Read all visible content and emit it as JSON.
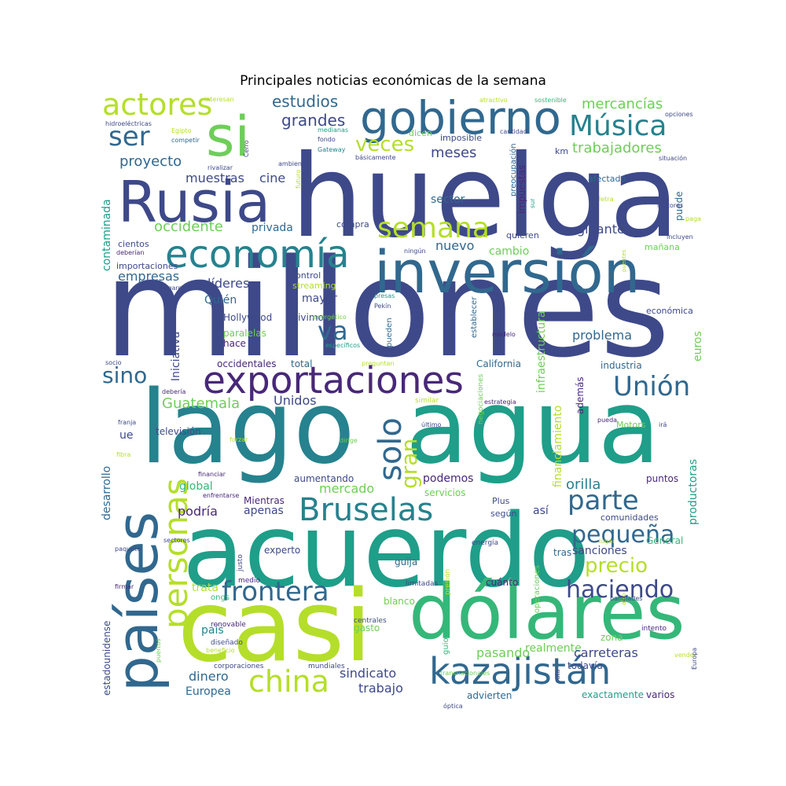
{
  "chart_data": {
    "type": "wordcloud",
    "title": "Principales noticias económicas de la semana",
    "palette": [
      "#440154",
      "#482878",
      "#3e4989",
      "#31688e",
      "#26828e",
      "#1f9e89",
      "#35b779",
      "#6ece58",
      "#b5de2b",
      "#fde725"
    ],
    "words": [
      {
        "text": "millones",
        "weight": 172,
        "color": "#3e4989"
      },
      {
        "text": "huelga",
        "weight": 145,
        "color": "#3e4989"
      },
      {
        "text": "agua",
        "weight": 130,
        "color": "#1f9e89"
      },
      {
        "text": "lago",
        "weight": 128,
        "color": "#26828e"
      },
      {
        "text": "acuerdo",
        "weight": 128,
        "color": "#1f9e89"
      },
      {
        "text": "casi",
        "weight": 126,
        "color": "#b5de2b"
      },
      {
        "text": "dólares",
        "weight": 96,
        "color": "#35b779"
      },
      {
        "text": "inversión",
        "weight": 74,
        "color": "#31688e"
      },
      {
        "text": "Rusia",
        "weight": 72,
        "color": "#3e4989"
      },
      {
        "text": "países",
        "weight": 72,
        "color": "#31688e"
      },
      {
        "text": "si",
        "weight": 70,
        "color": "#6ece58"
      },
      {
        "text": "gobierno",
        "weight": 58,
        "color": "#31688e"
      },
      {
        "text": "economía",
        "weight": 48,
        "color": "#26828e"
      },
      {
        "text": "exportaciones",
        "weight": 47,
        "color": "#482878"
      },
      {
        "text": "kazajistán",
        "weight": 46,
        "color": "#31688e"
      },
      {
        "text": "personas",
        "weight": 42,
        "color": "#b5de2b"
      },
      {
        "text": "Bruselas",
        "weight": 40,
        "color": "#26828e"
      },
      {
        "text": "solo",
        "weight": 40,
        "color": "#31688e"
      },
      {
        "text": "china",
        "weight": 38,
        "color": "#b5de2b"
      },
      {
        "text": "actores",
        "weight": 38,
        "color": "#b5de2b"
      },
      {
        "text": "semana",
        "weight": 36,
        "color": "#b5de2b"
      },
      {
        "text": "Música",
        "weight": 36,
        "color": "#26828e"
      },
      {
        "text": "frontera",
        "weight": 34,
        "color": "#31688e"
      },
      {
        "text": "parte",
        "weight": 34,
        "color": "#31688e"
      },
      {
        "text": "Unión",
        "weight": 34,
        "color": "#31688e"
      },
      {
        "text": "ser",
        "weight": 34,
        "color": "#31688e"
      },
      {
        "text": "va",
        "weight": 32,
        "color": "#31688e"
      },
      {
        "text": "haciendo",
        "weight": 30,
        "color": "#3e4989"
      },
      {
        "text": "pequeña",
        "weight": 30,
        "color": "#31688e"
      },
      {
        "text": "sino",
        "weight": 28,
        "color": "#31688e"
      },
      {
        "text": "gran",
        "weight": 28,
        "color": "#b5de2b"
      },
      {
        "text": "veces",
        "weight": 26,
        "color": "#b5de2b"
      },
      {
        "text": "precio",
        "weight": 26,
        "color": "#b5de2b"
      },
      {
        "text": "estudios",
        "weight": 20,
        "color": "#31688e"
      },
      {
        "text": "grandes",
        "weight": 20,
        "color": "#3e4989"
      },
      {
        "text": "mercancías",
        "weight": 18,
        "color": "#6ece58"
      },
      {
        "text": "trabajadores",
        "weight": 18,
        "color": "#6ece58"
      },
      {
        "text": "proyecto",
        "weight": 18,
        "color": "#31688e"
      },
      {
        "text": "meses",
        "weight": 18,
        "color": "#3e4989"
      },
      {
        "text": "muestras",
        "weight": 16,
        "color": "#3e4989"
      },
      {
        "text": "cine",
        "weight": 16,
        "color": "#3e4989"
      },
      {
        "text": "sector",
        "weight": 14,
        "color": "#31688e"
      },
      {
        "text": "occidente",
        "weight": 18,
        "color": "#6ece58"
      },
      {
        "text": "privada",
        "weight": 14,
        "color": "#31688e"
      },
      {
        "text": "gigante",
        "weight": 16,
        "color": "#3e4989"
      },
      {
        "text": "nuevo",
        "weight": 16,
        "color": "#31688e"
      },
      {
        "text": "cambio",
        "weight": 14,
        "color": "#6ece58"
      },
      {
        "text": "empresas",
        "weight": 16,
        "color": "#31688e"
      },
      {
        "text": "líderes",
        "weight": 16,
        "color": "#3e4989"
      },
      {
        "text": "mayor",
        "weight": 14,
        "color": "#3e4989"
      },
      {
        "text": "problema",
        "weight": 16,
        "color": "#31688e"
      },
      {
        "text": "Quién",
        "weight": 14,
        "color": "#31688e"
      },
      {
        "text": "Guatemala",
        "weight": 18,
        "color": "#6ece58"
      },
      {
        "text": "Unidos",
        "weight": 16,
        "color": "#3e4989"
      },
      {
        "text": "mercado",
        "weight": 16,
        "color": "#6ece58"
      },
      {
        "text": "podemos",
        "weight": 14,
        "color": "#482878"
      },
      {
        "text": "orilla",
        "weight": 18,
        "color": "#26828e"
      },
      {
        "text": "global",
        "weight": 14,
        "color": "#35b779"
      },
      {
        "text": "podría",
        "weight": 16,
        "color": "#482878"
      },
      {
        "text": "apenas",
        "weight": 14,
        "color": "#3e4989"
      },
      {
        "text": "así",
        "weight": 14,
        "color": "#3e4989"
      },
      {
        "text": "sanciones",
        "weight": 14,
        "color": "#3e4989"
      },
      {
        "text": "dinero",
        "weight": 16,
        "color": "#31688e"
      },
      {
        "text": "sindicato",
        "weight": 16,
        "color": "#3e4989"
      },
      {
        "text": "trabajo",
        "weight": 16,
        "color": "#3e4989"
      },
      {
        "text": "pasando",
        "weight": 16,
        "color": "#6ece58"
      },
      {
        "text": "realmente",
        "weight": 14,
        "color": "#6ece58"
      },
      {
        "text": "carreteras",
        "weight": 16,
        "color": "#3e4989"
      },
      {
        "text": "Europea",
        "weight": 14,
        "color": "#31688e"
      },
      {
        "text": "trata",
        "weight": 14,
        "color": "#b5de2b"
      },
      {
        "text": "país",
        "weight": 14,
        "color": "#26828e"
      },
      {
        "text": "todavía",
        "weight": 12,
        "color": "#3e4989"
      },
      {
        "text": "varios",
        "weight": 12,
        "color": "#482878"
      },
      {
        "text": "exactamente",
        "weight": 12,
        "color": "#1f9e89"
      },
      {
        "text": "advierten",
        "weight": 12,
        "color": "#31688e"
      },
      {
        "text": "industria",
        "weight": 12,
        "color": "#31688e"
      },
      {
        "text": "California",
        "weight": 12,
        "color": "#31688e"
      },
      {
        "text": "Hollywood",
        "weight": 12,
        "color": "#3e4989"
      },
      {
        "text": "vivimos",
        "weight": 12,
        "color": "#3e4989"
      },
      {
        "text": "total",
        "weight": 12,
        "color": "#31688e"
      },
      {
        "text": "occidentales",
        "weight": 12,
        "color": "#482878"
      },
      {
        "text": "hace",
        "weight": 12,
        "color": "#482878"
      },
      {
        "text": "paralelas",
        "weight": 12,
        "color": "#6ece58"
      },
      {
        "text": "aumentando",
        "weight": 12,
        "color": "#3e4989"
      },
      {
        "text": "servicios",
        "weight": 12,
        "color": "#6ece58"
      },
      {
        "text": "Mientras",
        "weight": 12,
        "color": "#482878"
      },
      {
        "text": "puntos",
        "weight": 12,
        "color": "#482878"
      },
      {
        "text": "comunidades",
        "weight": 11,
        "color": "#3e4989"
      },
      {
        "text": "General",
        "weight": 12,
        "color": "#35b779"
      },
      {
        "text": "experto",
        "weight": 12,
        "color": "#3e4989"
      },
      {
        "text": "guija",
        "weight": 12,
        "color": "#31688e"
      },
      {
        "text": "tras",
        "weight": 12,
        "color": "#31688e"
      },
      {
        "text": "blanco",
        "weight": 12,
        "color": "#6ece58"
      },
      {
        "text": "gasto",
        "weight": 12,
        "color": "#6ece58"
      },
      {
        "text": "cuánto",
        "weight": 12,
        "color": "#482878"
      },
      {
        "text": "zona",
        "weight": 12,
        "color": "#6ece58"
      },
      {
        "text": "televisión",
        "weight": 12,
        "color": "#3e4989"
      },
      {
        "text": "ue",
        "weight": 14,
        "color": "#3e4989"
      },
      {
        "text": "Motors",
        "weight": 11,
        "color": "#6ece58"
      },
      {
        "text": "según",
        "weight": 11,
        "color": "#3e4989"
      },
      {
        "text": "Plus",
        "weight": 11,
        "color": "#3e4989"
      },
      {
        "text": "control",
        "weight": 11,
        "color": "#3e4989"
      },
      {
        "text": "streaming",
        "weight": 11,
        "color": "#b5de2b"
      },
      {
        "text": "compra",
        "weight": 11,
        "color": "#3e4989"
      },
      {
        "text": "quieren",
        "weight": 11,
        "color": "#3e4989"
      },
      {
        "text": "afectado",
        "weight": 11,
        "color": "#31688e"
      },
      {
        "text": "imposible",
        "weight": 11,
        "color": "#3e4989"
      },
      {
        "text": "dicen",
        "weight": 11,
        "color": "#6ece58"
      },
      {
        "text": "económica",
        "weight": 11,
        "color": "#3e4989"
      },
      {
        "text": "mañana",
        "weight": 11,
        "color": "#6ece58"
      },
      {
        "text": "cientos",
        "weight": 11,
        "color": "#3e4989"
      },
      {
        "text": "importaciones",
        "weight": 11,
        "color": "#3e4989"
      },
      {
        "text": "contaminada",
        "weight": 14,
        "color": "#1f9e89"
      },
      {
        "text": "Iniciativa",
        "weight": 14,
        "color": "#3e4989"
      },
      {
        "text": "desarrollo",
        "weight": 14,
        "color": "#31688e"
      },
      {
        "text": "estadounidense",
        "weight": 12,
        "color": "#3e4989"
      },
      {
        "text": "productoras",
        "weight": 14,
        "color": "#1f9e89"
      },
      {
        "text": "euros",
        "weight": 14,
        "color": "#6ece58"
      },
      {
        "text": "infraestructura",
        "weight": 14,
        "color": "#6ece58"
      },
      {
        "text": "financiamiento",
        "weight": 14,
        "color": "#b5de2b"
      },
      {
        "text": "impuestas",
        "weight": 12,
        "color": "#482878"
      },
      {
        "text": "además",
        "weight": 12,
        "color": "#482878"
      },
      {
        "text": "puede",
        "weight": 12,
        "color": "#31688e"
      },
      {
        "text": "km",
        "weight": 11,
        "color": "#3e4989"
      },
      {
        "text": "preocupación",
        "weight": 10,
        "color": "#31688e"
      },
      {
        "text": "establecer",
        "weight": 10,
        "color": "#31688e"
      },
      {
        "text": "pueden",
        "weight": 10,
        "color": "#31688e"
      },
      {
        "text": "guionistas",
        "weight": 10,
        "color": "#35b779"
      },
      {
        "text": "operaciones",
        "weight": 10,
        "color": "#6ece58"
      },
      {
        "text": "negociaciones",
        "weight": 9,
        "color": "#6ece58"
      },
      {
        "text": "justo",
        "weight": 9,
        "color": "#3e4989"
      },
      {
        "text": "ongs",
        "weight": 10,
        "color": "#35b779"
      },
      {
        "text": "medio",
        "weight": 9,
        "color": "#482878"
      },
      {
        "text": "presión",
        "weight": 9,
        "color": "#b5de2b"
      },
      {
        "text": "limitadas",
        "weight": 9,
        "color": "#3e4989"
      },
      {
        "text": "energía",
        "weight": 9,
        "color": "#3e4989"
      },
      {
        "text": "renovable",
        "weight": 9,
        "color": "#482878"
      },
      {
        "text": "diseñado",
        "weight": 9,
        "color": "#3e4989"
      },
      {
        "text": "beneficio",
        "weight": 8,
        "color": "#b5de2b"
      },
      {
        "text": "centrales",
        "weight": 9,
        "color": "#3e4989"
      },
      {
        "text": "corporaciones",
        "weight": 9,
        "color": "#3e4989"
      },
      {
        "text": "mundiales",
        "weight": 9,
        "color": "#3e4989"
      },
      {
        "text": "transnacionales",
        "weight": 8,
        "color": "#6ece58"
      },
      {
        "text": "óptica",
        "weight": 8,
        "color": "#3e4989"
      },
      {
        "text": "ruta",
        "weight": 8,
        "color": "#3e4989"
      },
      {
        "text": "intento",
        "weight": 9,
        "color": "#482878"
      },
      {
        "text": "vender",
        "weight": 8,
        "color": "#b5de2b"
      },
      {
        "text": "Europa",
        "weight": 8,
        "color": "#3e4989"
      },
      {
        "text": "alto",
        "weight": 8,
        "color": "#b5de2b"
      },
      {
        "text": "banglades",
        "weight": 8,
        "color": "#3e4989"
      },
      {
        "text": "lugar",
        "weight": 8,
        "color": "#b5de2b"
      },
      {
        "text": "sectores",
        "weight": 8,
        "color": "#3e4989"
      },
      {
        "text": "paquete",
        "weight": 8,
        "color": "#3e4989"
      },
      {
        "text": "firmar",
        "weight": 8,
        "color": "#482878"
      },
      {
        "text": "puertos",
        "weight": 8,
        "color": "#6ece58"
      },
      {
        "text": "enfrentarse",
        "weight": 8,
        "color": "#482878"
      },
      {
        "text": "financiar",
        "weight": 8,
        "color": "#482878"
      },
      {
        "text": "fibra",
        "weight": 8,
        "color": "#b5de2b"
      },
      {
        "text": "franja",
        "weight": 8,
        "color": "#3e4989"
      },
      {
        "text": "forzar",
        "weight": 8,
        "color": "#b5de2b"
      },
      {
        "text": "dirige",
        "weight": 8,
        "color": "#6ece58"
      },
      {
        "text": "último",
        "weight": 8,
        "color": "#3e4989"
      },
      {
        "text": "estrategia",
        "weight": 8,
        "color": "#482878"
      },
      {
        "text": "similar",
        "weight": 9,
        "color": "#b5de2b"
      },
      {
        "text": "pueda",
        "weight": 8,
        "color": "#482878"
      },
      {
        "text": "irá",
        "weight": 8,
        "color": "#3e4989"
      },
      {
        "text": "debería",
        "weight": 8,
        "color": "#482878"
      },
      {
        "text": "socio",
        "weight": 8,
        "color": "#3e4989"
      },
      {
        "text": "preguntan",
        "weight": 8,
        "color": "#b5de2b"
      },
      {
        "text": "específicos",
        "weight": 8,
        "color": "#1f9e89"
      },
      {
        "text": "energético",
        "weight": 8,
        "color": "#6ece58"
      },
      {
        "text": "presas",
        "weight": 8,
        "color": "#1f9e89"
      },
      {
        "text": "Pekín",
        "weight": 8,
        "color": "#3e4989"
      },
      {
        "text": "modelo",
        "weight": 8,
        "color": "#482878"
      },
      {
        "text": "llegaron",
        "weight": 8,
        "color": "#3e4989"
      },
      {
        "text": "deberían",
        "weight": 8,
        "color": "#482878"
      },
      {
        "text": "ningún",
        "weight": 8,
        "color": "#3e4989"
      },
      {
        "text": "puentes",
        "weight": 7,
        "color": "#b5de2b"
      },
      {
        "text": "incluyen",
        "weight": 8,
        "color": "#3e4989"
      },
      {
        "text": "paga",
        "weight": 8,
        "color": "#b5de2b"
      },
      {
        "text": "letra",
        "weight": 8,
        "color": "#b5de2b"
      },
      {
        "text": "sur",
        "weight": 8,
        "color": "#1f9e89"
      },
      {
        "text": "situación",
        "weight": 8,
        "color": "#3e4989"
      },
      {
        "text": "motores",
        "weight": 8,
        "color": "#3e4989"
      },
      {
        "text": "básicamente",
        "weight": 8,
        "color": "#3e4989"
      },
      {
        "text": "Gateway",
        "weight": 8,
        "color": "#26828e"
      },
      {
        "text": "fondo",
        "weight": 8,
        "color": "#3e4989"
      },
      {
        "text": "medianas",
        "weight": 8,
        "color": "#1f9e89"
      },
      {
        "text": "cantidad",
        "weight": 8,
        "color": "#3e4989"
      },
      {
        "text": "opciones",
        "weight": 8,
        "color": "#3e4989"
      },
      {
        "text": "sostenible",
        "weight": 8,
        "color": "#35b779"
      },
      {
        "text": "atractivo",
        "weight": 8,
        "color": "#b5de2b"
      },
      {
        "text": "interesan",
        "weight": 8,
        "color": "#b5de2b"
      },
      {
        "text": "hidroeléctricas",
        "weight": 8,
        "color": "#3e4989"
      },
      {
        "text": "Egipto",
        "weight": 8,
        "color": "#b5de2b"
      },
      {
        "text": "competir",
        "weight": 8,
        "color": "#31688e"
      },
      {
        "text": "Cerro",
        "weight": 8,
        "color": "#3e4989"
      },
      {
        "text": "rivalizar",
        "weight": 8,
        "color": "#3e4989"
      },
      {
        "text": "ambiente",
        "weight": 8,
        "color": "#3e4989"
      },
      {
        "text": "futuro",
        "weight": 8,
        "color": "#b5de2b"
      }
    ]
  }
}
